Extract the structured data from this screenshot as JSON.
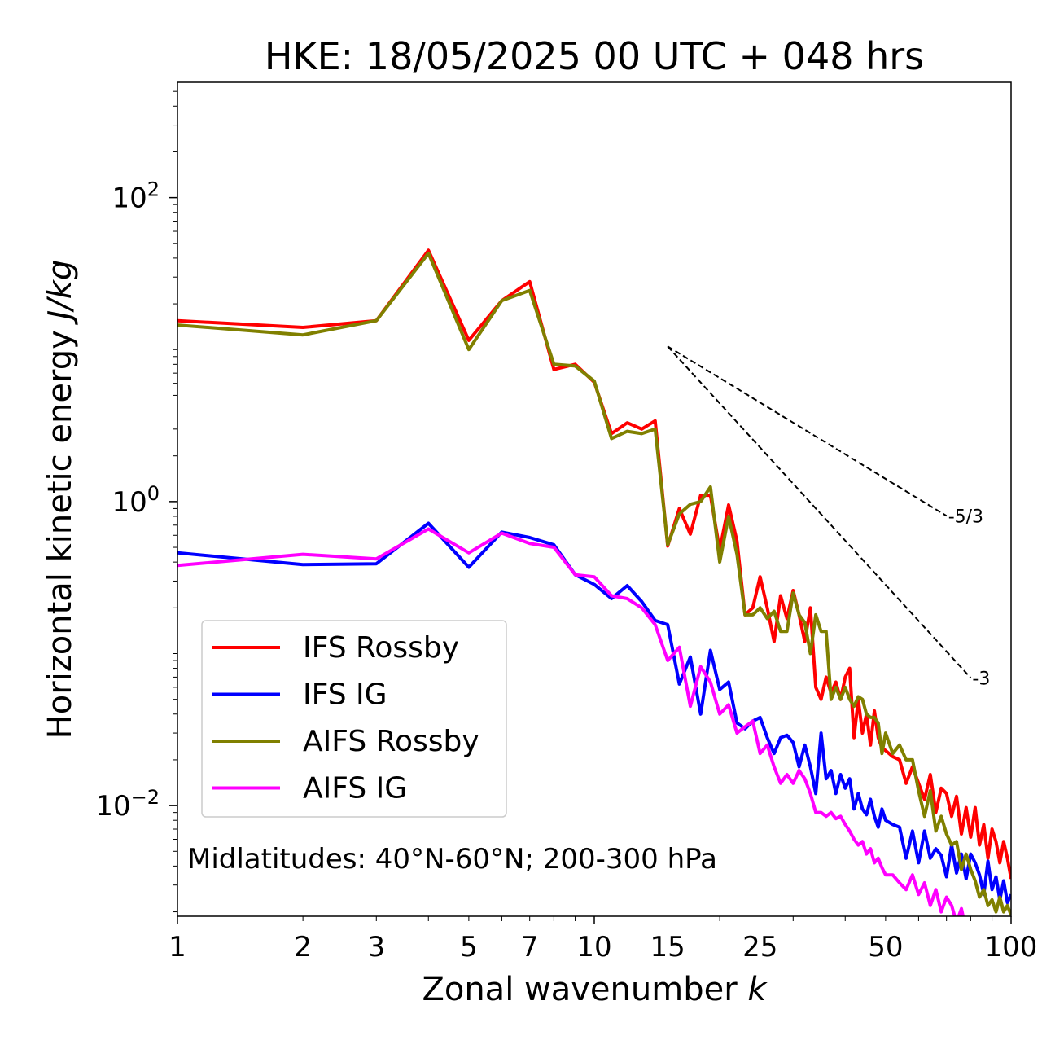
{
  "chart_data": {
    "type": "line",
    "title": "HKE: 18/05/2025 00 UTC + 048 hrs",
    "xlabel": "Zonal wavenumber k",
    "xlabel_main": "Zonal wavenumber ",
    "xlabel_var": "k",
    "ylabel": "Horizontal kinetic energy J/kg",
    "ylabel_main": "Horizontal kinetic energy ",
    "ylabel_unit": "J/kg",
    "xscale": "log",
    "yscale": "log",
    "xlim": [
      1,
      100
    ],
    "ylim": [
      0.00187,
      574
    ],
    "xticks": [
      {
        "value": 1,
        "label": "1"
      },
      {
        "value": 2,
        "label": "2"
      },
      {
        "value": 3,
        "label": "3"
      },
      {
        "value": 5,
        "label": "5"
      },
      {
        "value": 7,
        "label": "7"
      },
      {
        "value": 10,
        "label": "10"
      },
      {
        "value": 15,
        "label": "15"
      },
      {
        "value": 25,
        "label": "25"
      },
      {
        "value": 50,
        "label": "50"
      },
      {
        "value": 100,
        "label": "100"
      }
    ],
    "yticks": [
      {
        "value": 100,
        "base": "10",
        "exp": "2"
      },
      {
        "value": 1,
        "base": "10",
        "exp": "0"
      },
      {
        "value": 0.01,
        "base": "10",
        "exp": "−2"
      }
    ],
    "annotation": "Midlatitudes: 40°N-60°N; 200-300 hPa",
    "reference_lines": [
      {
        "label": "-5/3",
        "slope": -1.6667,
        "x": [
          15,
          70
        ],
        "y0": 10.5
      },
      {
        "label": "-3",
        "slope": -3,
        "x": [
          15,
          80
        ],
        "y0": 10.5
      }
    ],
    "legend_position": "lower-left",
    "series": [
      {
        "name": "IFS Rossby",
        "color": "#ff0000",
        "values": [
          [
            1,
            15.5
          ],
          [
            2,
            14
          ],
          [
            3,
            15.5
          ],
          [
            4,
            45
          ],
          [
            5,
            11.5
          ],
          [
            6,
            21
          ],
          [
            7,
            28
          ],
          [
            8,
            7.4
          ],
          [
            9,
            8
          ],
          [
            10,
            6.1
          ],
          [
            11,
            2.8
          ],
          [
            12,
            3.3
          ],
          [
            13,
            3.0
          ],
          [
            14,
            3.4
          ],
          [
            15,
            0.51
          ],
          [
            16,
            0.9
          ],
          [
            17,
            0.61
          ],
          [
            18,
            1.1
          ],
          [
            19,
            1.1
          ],
          [
            20,
            0.48
          ],
          [
            21,
            0.95
          ],
          [
            22,
            0.55
          ],
          [
            23,
            0.18
          ],
          [
            24,
            0.2
          ],
          [
            25,
            0.32
          ],
          [
            26,
            0.2
          ],
          [
            27,
            0.12
          ],
          [
            28,
            0.24
          ],
          [
            29,
            0.17
          ],
          [
            30,
            0.26
          ],
          [
            31,
            0.18
          ],
          [
            32,
            0.12
          ],
          [
            33,
            0.2
          ],
          [
            34,
            0.06
          ],
          [
            35,
            0.05
          ],
          [
            36,
            0.07
          ],
          [
            37,
            0.055
          ],
          [
            38,
            0.065
          ],
          [
            39,
            0.05
          ],
          [
            40,
            0.07
          ],
          [
            41,
            0.08
          ],
          [
            42,
            0.028
          ],
          [
            43,
            0.05
          ],
          [
            44,
            0.03
          ],
          [
            45,
            0.04
          ],
          [
            46,
            0.025
          ],
          [
            47,
            0.042
          ],
          [
            48,
            0.028
          ],
          [
            49,
            0.024
          ],
          [
            50,
            0.023
          ],
          [
            52,
            0.021
          ],
          [
            54,
            0.02
          ],
          [
            56,
            0.014
          ],
          [
            58,
            0.018
          ],
          [
            60,
            0.014
          ],
          [
            62,
            0.011
          ],
          [
            64,
            0.016
          ],
          [
            66,
            0.009
          ],
          [
            68,
            0.013
          ],
          [
            70,
            0.012
          ],
          [
            72,
            0.0085
          ],
          [
            74,
            0.0115
          ],
          [
            76,
            0.0065
          ],
          [
            78,
            0.0097
          ],
          [
            80,
            0.0062
          ],
          [
            82,
            0.0097
          ],
          [
            84,
            0.0055
          ],
          [
            86,
            0.0075
          ],
          [
            88,
            0.0045
          ],
          [
            90,
            0.007
          ],
          [
            92,
            0.0058
          ],
          [
            94,
            0.0042
          ],
          [
            96,
            0.0058
          ],
          [
            98,
            0.0045
          ],
          [
            100,
            0.0033
          ]
        ]
      },
      {
        "name": "IFS IG",
        "color": "#0000ff",
        "values": [
          [
            1,
            0.46
          ],
          [
            2,
            0.385
          ],
          [
            3,
            0.39
          ],
          [
            4,
            0.72
          ],
          [
            5,
            0.37
          ],
          [
            6,
            0.63
          ],
          [
            7,
            0.58
          ],
          [
            8,
            0.52
          ],
          [
            9,
            0.33
          ],
          [
            10,
            0.285
          ],
          [
            11,
            0.23
          ],
          [
            12,
            0.28
          ],
          [
            13,
            0.22
          ],
          [
            14,
            0.165
          ],
          [
            15,
            0.155
          ],
          [
            16,
            0.063
          ],
          [
            17,
            0.095
          ],
          [
            18,
            0.04
          ],
          [
            19,
            0.105
          ],
          [
            20,
            0.058
          ],
          [
            21,
            0.065
          ],
          [
            22,
            0.035
          ],
          [
            23,
            0.032
          ],
          [
            24,
            0.036
          ],
          [
            25,
            0.038
          ],
          [
            26,
            0.028
          ],
          [
            27,
            0.022
          ],
          [
            28,
            0.028
          ],
          [
            29,
            0.029
          ],
          [
            30,
            0.026
          ],
          [
            31,
            0.018
          ],
          [
            32,
            0.025
          ],
          [
            33,
            0.018
          ],
          [
            34,
            0.012
          ],
          [
            35,
            0.03
          ],
          [
            36,
            0.015
          ],
          [
            37,
            0.017
          ],
          [
            38,
            0.012
          ],
          [
            39,
            0.016
          ],
          [
            40,
            0.013
          ],
          [
            41,
            0.015
          ],
          [
            42,
            0.0095
          ],
          [
            43,
            0.012
          ],
          [
            44,
            0.0095
          ],
          [
            45,
            0.0087
          ],
          [
            46,
            0.011
          ],
          [
            47,
            0.0085
          ],
          [
            48,
            0.0072
          ],
          [
            49,
            0.0095
          ],
          [
            50,
            0.008
          ],
          [
            52,
            0.0075
          ],
          [
            54,
            0.0072
          ],
          [
            56,
            0.0045
          ],
          [
            58,
            0.0068
          ],
          [
            60,
            0.0042
          ],
          [
            62,
            0.0068
          ],
          [
            64,
            0.0045
          ],
          [
            66,
            0.0052
          ],
          [
            68,
            0.0047
          ],
          [
            70,
            0.0034
          ],
          [
            72,
            0.0055
          ],
          [
            74,
            0.0036
          ],
          [
            76,
            0.0048
          ],
          [
            78,
            0.0033
          ],
          [
            80,
            0.0048
          ],
          [
            82,
            0.0042
          ],
          [
            84,
            0.0035
          ],
          [
            86,
            0.0026
          ],
          [
            88,
            0.0043
          ],
          [
            90,
            0.0028
          ],
          [
            92,
            0.0034
          ],
          [
            94,
            0.0024
          ],
          [
            96,
            0.0032
          ],
          [
            98,
            0.0023
          ],
          [
            100,
            0.0026
          ]
        ]
      },
      {
        "name": "AIFS Rossby",
        "color": "#808000",
        "values": [
          [
            1,
            14.5
          ],
          [
            2,
            12.5
          ],
          [
            3,
            15.5
          ],
          [
            4,
            43
          ],
          [
            5,
            10
          ],
          [
            6,
            21
          ],
          [
            7,
            24.5
          ],
          [
            8,
            8
          ],
          [
            9,
            7.8
          ],
          [
            10,
            6.2
          ],
          [
            11,
            2.6
          ],
          [
            12,
            2.9
          ],
          [
            13,
            2.8
          ],
          [
            14,
            3.0
          ],
          [
            15,
            0.52
          ],
          [
            16,
            0.83
          ],
          [
            17,
            0.96
          ],
          [
            18,
            1.0
          ],
          [
            19,
            1.25
          ],
          [
            20,
            0.4
          ],
          [
            21,
            0.8
          ],
          [
            22,
            0.45
          ],
          [
            23,
            0.18
          ],
          [
            24,
            0.18
          ],
          [
            25,
            0.2
          ],
          [
            26,
            0.17
          ],
          [
            27,
            0.19
          ],
          [
            28,
            0.14
          ],
          [
            29,
            0.14
          ],
          [
            30,
            0.25
          ],
          [
            31,
            0.18
          ],
          [
            32,
            0.16
          ],
          [
            33,
            0.1
          ],
          [
            34,
            0.18
          ],
          [
            35,
            0.14
          ],
          [
            36,
            0.14
          ],
          [
            37,
            0.05
          ],
          [
            38,
            0.06
          ],
          [
            39,
            0.05
          ],
          [
            40,
            0.06
          ],
          [
            41,
            0.05
          ],
          [
            42,
            0.045
          ],
          [
            43,
            0.052
          ],
          [
            44,
            0.05
          ],
          [
            45,
            0.04
          ],
          [
            46,
            0.038
          ],
          [
            47,
            0.038
          ],
          [
            48,
            0.035
          ],
          [
            49,
            0.022
          ],
          [
            50,
            0.03
          ],
          [
            52,
            0.022
          ],
          [
            54,
            0.025
          ],
          [
            56,
            0.02
          ],
          [
            58,
            0.02
          ],
          [
            60,
            0.0125
          ],
          [
            62,
            0.0085
          ],
          [
            64,
            0.0125
          ],
          [
            66,
            0.0068
          ],
          [
            68,
            0.0085
          ],
          [
            70,
            0.0065
          ],
          [
            72,
            0.0055
          ],
          [
            74,
            0.0058
          ],
          [
            76,
            0.0038
          ],
          [
            78,
            0.0048
          ],
          [
            80,
            0.0038
          ],
          [
            82,
            0.0032
          ],
          [
            84,
            0.0025
          ],
          [
            86,
            0.0028
          ],
          [
            88,
            0.0022
          ],
          [
            90,
            0.0024
          ],
          [
            92,
            0.002
          ],
          [
            94,
            0.0025
          ],
          [
            96,
            0.002
          ],
          [
            98,
            0.0022
          ],
          [
            100,
            0.0019
          ]
        ]
      },
      {
        "name": "AIFS IG",
        "color": "#ff00ff",
        "values": [
          [
            1,
            0.38
          ],
          [
            2,
            0.45
          ],
          [
            3,
            0.42
          ],
          [
            4,
            0.66
          ],
          [
            5,
            0.46
          ],
          [
            6,
            0.62
          ],
          [
            7,
            0.53
          ],
          [
            8,
            0.5
          ],
          [
            9,
            0.33
          ],
          [
            10,
            0.32
          ],
          [
            11,
            0.24
          ],
          [
            12,
            0.23
          ],
          [
            13,
            0.2
          ],
          [
            14,
            0.155
          ],
          [
            15,
            0.09
          ],
          [
            16,
            0.11
          ],
          [
            17,
            0.045
          ],
          [
            18,
            0.082
          ],
          [
            19,
            0.065
          ],
          [
            20,
            0.04
          ],
          [
            21,
            0.046
          ],
          [
            22,
            0.03
          ],
          [
            23,
            0.033
          ],
          [
            24,
            0.036
          ],
          [
            25,
            0.022
          ],
          [
            26,
            0.025
          ],
          [
            27,
            0.018
          ],
          [
            28,
            0.014
          ],
          [
            29,
            0.016
          ],
          [
            30,
            0.014
          ],
          [
            31,
            0.017
          ],
          [
            32,
            0.015
          ],
          [
            33,
            0.012
          ],
          [
            34,
            0.009
          ],
          [
            35,
            0.009
          ],
          [
            36,
            0.0085
          ],
          [
            37,
            0.009
          ],
          [
            38,
            0.0082
          ],
          [
            39,
            0.0085
          ],
          [
            40,
            0.0075
          ],
          [
            41,
            0.0068
          ],
          [
            42,
            0.006
          ],
          [
            43,
            0.0055
          ],
          [
            44,
            0.0058
          ],
          [
            45,
            0.0048
          ],
          [
            46,
            0.0052
          ],
          [
            47,
            0.0042
          ],
          [
            48,
            0.0045
          ],
          [
            49,
            0.0039
          ],
          [
            50,
            0.0035
          ],
          [
            52,
            0.0035
          ],
          [
            54,
            0.0031
          ],
          [
            56,
            0.0028
          ],
          [
            58,
            0.0035
          ],
          [
            60,
            0.0026
          ],
          [
            62,
            0.0031
          ],
          [
            64,
            0.0022
          ],
          [
            66,
            0.0028
          ],
          [
            68,
            0.002
          ],
          [
            70,
            0.0025
          ],
          [
            72,
            0.0022
          ],
          [
            74,
            0.0017
          ],
          [
            76,
            0.0021
          ],
          [
            78,
            0.0015
          ],
          [
            80,
            0.0016
          ],
          [
            84,
            0.0015
          ],
          [
            88,
            0.0012
          ],
          [
            92,
            0.0016
          ],
          [
            96,
            0.0013
          ],
          [
            100,
            0.0012
          ]
        ]
      }
    ]
  }
}
